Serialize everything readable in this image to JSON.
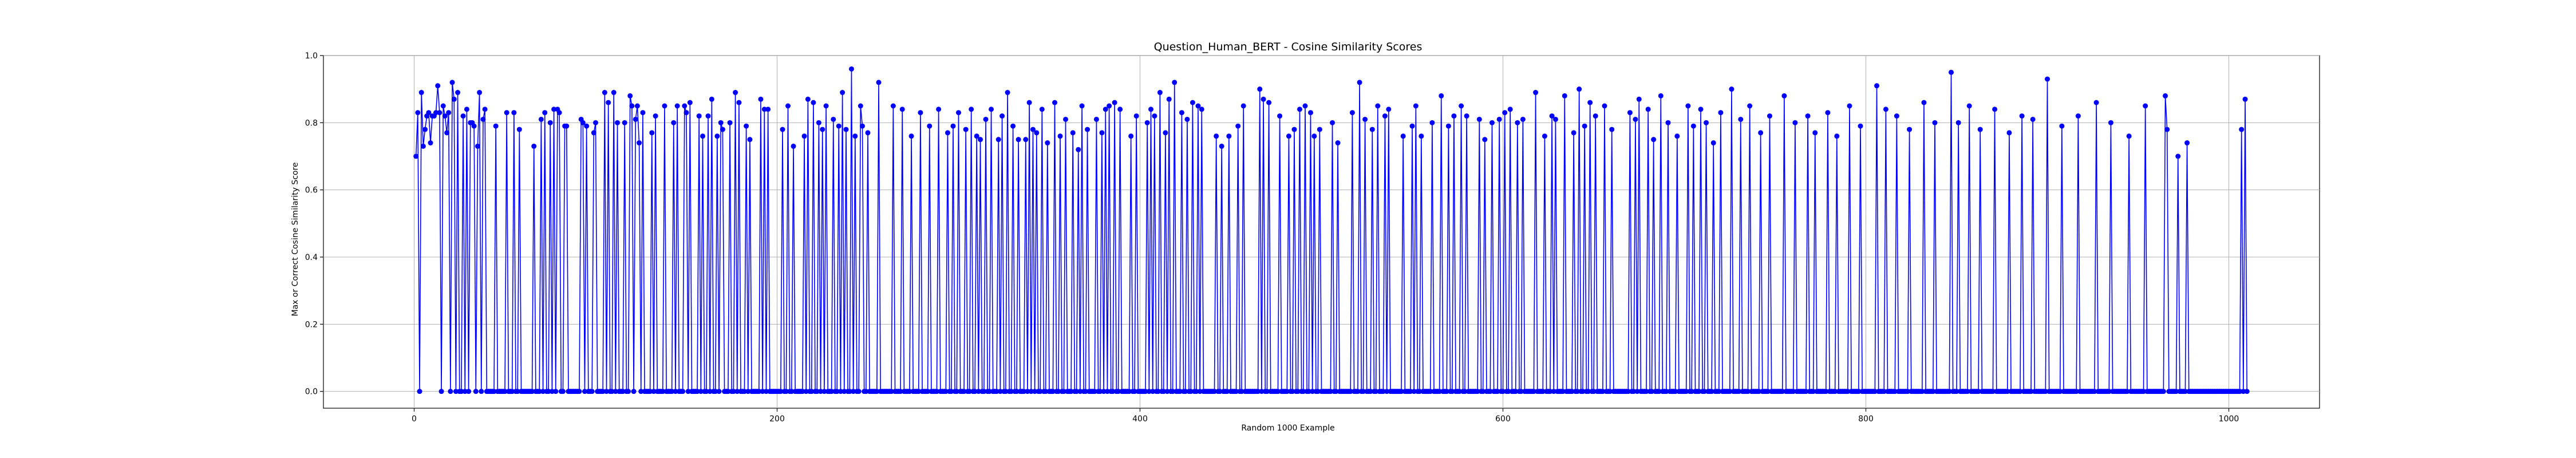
{
  "chart_data": {
    "type": "line",
    "title": "Question_Human_BERT - Cosine Similarity Scores",
    "xlabel": "Random 1000 Example",
    "ylabel": "Max or Correct Cosine Similarity Score",
    "xlim": [
      -50,
      1050
    ],
    "ylim": [
      -0.05,
      1.0
    ],
    "x_ticks": [
      0,
      200,
      400,
      600,
      800,
      1000
    ],
    "y_ticks": [
      0.0,
      0.2,
      0.4,
      0.6,
      0.8,
      1.0
    ],
    "x_tick_labels": [
      "0",
      "200",
      "400",
      "600",
      "800",
      "1000"
    ],
    "y_tick_labels": [
      "0.0",
      "0.2",
      "0.4",
      "0.6",
      "0.8",
      "1.0"
    ],
    "grid": true,
    "series_color": "#0000ff",
    "marker": "circle",
    "x_start": 1,
    "series": [
      {
        "values": [
          0.7,
          0.83,
          0.0,
          0.89,
          0.73,
          0.78,
          0.82,
          0.83,
          0.74,
          0.82,
          0.82,
          0.83,
          0.91,
          0.83,
          0.0,
          0.85,
          0.82,
          0.77,
          0.83,
          0.0,
          0.92,
          0.87,
          0.0,
          0.89,
          0.0,
          0.0,
          0.82,
          0.0,
          0.84,
          0.0,
          0.8,
          0.8,
          0.79,
          0.0,
          0.73,
          0.89,
          0.0,
          0.81,
          0.84,
          0.0,
          0.0,
          0.0,
          0.0,
          0.0,
          0.79,
          0.0,
          0.0,
          0.0,
          0.0,
          0.0,
          0.83,
          0.0,
          0.0,
          0.0,
          0.83,
          0.0,
          0.0,
          0.78,
          0.0,
          0.0,
          0.0,
          0.0,
          0.0,
          0.0,
          0.0,
          0.73,
          0.0,
          0.0,
          0.0,
          0.81,
          0.0,
          0.83,
          0.0,
          0.0,
          0.8,
          0.0,
          0.84,
          0.0,
          0.84,
          0.83,
          0.0,
          0.0,
          0.79,
          0.79,
          0.0,
          0.0,
          0.0,
          0.0,
          0.0,
          0.0,
          0.0,
          0.81,
          0.8,
          0.0,
          0.79,
          0.0,
          0.0,
          0.0,
          0.77,
          0.8,
          0.0,
          0.0,
          0.0,
          0.0,
          0.89,
          0.0,
          0.86,
          0.0,
          0.0,
          0.89,
          0.0,
          0.8,
          0.0,
          0.0,
          0.0,
          0.8,
          0.0,
          0.0,
          0.88,
          0.85,
          0.0,
          0.81,
          0.85,
          0.74,
          0.0,
          0.83,
          0.0,
          0.0,
          0.0,
          0.0,
          0.77,
          0.0,
          0.82,
          0.0,
          0.0,
          0.0,
          0.0,
          0.85,
          0.0,
          0.0,
          0.0,
          0.0,
          0.8,
          0.0,
          0.85,
          0.0,
          0.0,
          0.0,
          0.85,
          0.83,
          0.0,
          0.86,
          0.0,
          0.0,
          0.0,
          0.0,
          0.82,
          0.0,
          0.76,
          0.0,
          0.0,
          0.82,
          0.0,
          0.87,
          0.0,
          0.0,
          0.76,
          0.0,
          0.8,
          0.78,
          0.0,
          0.0,
          0.0,
          0.8,
          0.0,
          0.0,
          0.89,
          0.0,
          0.86,
          0.0,
          0.0,
          0.0,
          0.79,
          0.0,
          0.75,
          0.0,
          0.0,
          0.0,
          0.0,
          0.0,
          0.87,
          0.0,
          0.84,
          0.0,
          0.84,
          0.0,
          0.0,
          0.0,
          0.0,
          0.0,
          0.0,
          0.0,
          0.78,
          0.0,
          0.0,
          0.85,
          0.0,
          0.0,
          0.73,
          0.0,
          0.0,
          0.0,
          0.0,
          0.0,
          0.76,
          0.0,
          0.87,
          0.0,
          0.0,
          0.86,
          0.0,
          0.0,
          0.8,
          0.0,
          0.78,
          0.0,
          0.85,
          0.0,
          0.0,
          0.0,
          0.81,
          0.0,
          0.0,
          0.79,
          0.0,
          0.89,
          0.0,
          0.78,
          0.0,
          0.0,
          0.96,
          0.0,
          0.76,
          0.0,
          0.0,
          0.85,
          0.79,
          0.0,
          0.0,
          0.77,
          0.0,
          0.0,
          0.0,
          0.0,
          0.0,
          0.92,
          0.0,
          0.0,
          0.0,
          0.0,
          0.0,
          0.0,
          0.0,
          0.85,
          0.0,
          0.0,
          0.0,
          0.0,
          0.84,
          0.0,
          0.0,
          0.0,
          0.0,
          0.76,
          0.0,
          0.0,
          0.0,
          0.0,
          0.83,
          0.0,
          0.0,
          0.0,
          0.0,
          0.79,
          0.0,
          0.0,
          0.0,
          0.0,
          0.84,
          0.0,
          0.0,
          0.0,
          0.0,
          0.77,
          0.0,
          0.0,
          0.79,
          0.0,
          0.0,
          0.83,
          0.0,
          0.0,
          0.0,
          0.78,
          0.0,
          0.0,
          0.84,
          0.0,
          0.0,
          0.76,
          0.0,
          0.75,
          0.0,
          0.0,
          0.81,
          0.0,
          0.0,
          0.84,
          0.0,
          0.0,
          0.0,
          0.75,
          0.0,
          0.82,
          0.0,
          0.0,
          0.89,
          0.0,
          0.0,
          0.79,
          0.0,
          0.0,
          0.75,
          0.0,
          0.0,
          0.0,
          0.75,
          0.0,
          0.86,
          0.0,
          0.78,
          0.0,
          0.77,
          0.0,
          0.0,
          0.84,
          0.0,
          0.0,
          0.74,
          0.0,
          0.0,
          0.0,
          0.86,
          0.0,
          0.0,
          0.76,
          0.0,
          0.0,
          0.81,
          0.0,
          0.0,
          0.0,
          0.77,
          0.0,
          0.0,
          0.72,
          0.0,
          0.85,
          0.0,
          0.0,
          0.78,
          0.0,
          0.0,
          0.0,
          0.0,
          0.81,
          0.0,
          0.0,
          0.77,
          0.0,
          0.84,
          0.0,
          0.85,
          0.0,
          0.0,
          0.86,
          0.0,
          0.0,
          0.84,
          0.0,
          0.0,
          0.0,
          0.0,
          0.0,
          0.76,
          0.0,
          0.0,
          0.82,
          0.0,
          0.0,
          0.0,
          0.0,
          0.0,
          0.8,
          0.0,
          0.84,
          0.0,
          0.82,
          0.0,
          0.0,
          0.89,
          0.0,
          0.0,
          0.77,
          0.0,
          0.87,
          0.0,
          0.0,
          0.92,
          0.0,
          0.0,
          0.0,
          0.83,
          0.0,
          0.0,
          0.81,
          0.0,
          0.0,
          0.86,
          0.0,
          0.0,
          0.85,
          0.0,
          0.84,
          0.0,
          0.0,
          0.0,
          0.0,
          0.0,
          0.0,
          0.0,
          0.76,
          0.0,
          0.0,
          0.73,
          0.0,
          0.0,
          0.0,
          0.76,
          0.0,
          0.0,
          0.0,
          0.0,
          0.79,
          0.0,
          0.0,
          0.85,
          0.0,
          0.0,
          0.0,
          0.0,
          0.0,
          0.0,
          0.0,
          0.0,
          0.9,
          0.0,
          0.87,
          0.0,
          0.0,
          0.86,
          0.0,
          0.0,
          0.0,
          0.0,
          0.0,
          0.82,
          0.0,
          0.0,
          0.0,
          0.0,
          0.76,
          0.0,
          0.0,
          0.78,
          0.0,
          0.0,
          0.84,
          0.0,
          0.0,
          0.85,
          0.0,
          0.0,
          0.83,
          0.0,
          0.76,
          0.0,
          0.0,
          0.78,
          0.0,
          0.0,
          0.0,
          0.0,
          0.0,
          0.0,
          0.8,
          0.0,
          0.0,
          0.74,
          0.0,
          0.0,
          0.0,
          0.0,
          0.0,
          0.0,
          0.0,
          0.83,
          0.0,
          0.0,
          0.0,
          0.92,
          0.0,
          0.0,
          0.81,
          0.0,
          0.0,
          0.0,
          0.78,
          0.0,
          0.0,
          0.85,
          0.0,
          0.0,
          0.0,
          0.82,
          0.0,
          0.84,
          0.0,
          0.0,
          0.0,
          0.0,
          0.0,
          0.0,
          0.0,
          0.76,
          0.0,
          0.0,
          0.0,
          0.0,
          0.79,
          0.0,
          0.85,
          0.0,
          0.0,
          0.76,
          0.0,
          0.0,
          0.0,
          0.0,
          0.0,
          0.8,
          0.0,
          0.0,
          0.0,
          0.0,
          0.88,
          0.0,
          0.0,
          0.0,
          0.79,
          0.0,
          0.0,
          0.82,
          0.0,
          0.0,
          0.0,
          0.85,
          0.0,
          0.0,
          0.82,
          0.0,
          0.0,
          0.0,
          0.0,
          0.0,
          0.0,
          0.81,
          0.0,
          0.0,
          0.75,
          0.0,
          0.0,
          0.0,
          0.8,
          0.0,
          0.0,
          0.0,
          0.81,
          0.0,
          0.0,
          0.83,
          0.0,
          0.0,
          0.84,
          0.0,
          0.0,
          0.0,
          0.8,
          0.0,
          0.0,
          0.81,
          0.0,
          0.0,
          0.0,
          0.0,
          0.0,
          0.0,
          0.89,
          0.0,
          0.0,
          0.0,
          0.0,
          0.76,
          0.0,
          0.0,
          0.0,
          0.82,
          0.0,
          0.81,
          0.0,
          0.0,
          0.0,
          0.0,
          0.88,
          0.0,
          0.0,
          0.0,
          0.0,
          0.77,
          0.0,
          0.0,
          0.9,
          0.0,
          0.0,
          0.79,
          0.0,
          0.0,
          0.86,
          0.0,
          0.0,
          0.82,
          0.0,
          0.0,
          0.0,
          0.0,
          0.85,
          0.0,
          0.0,
          0.0,
          0.78,
          0.0,
          0.0,
          0.0,
          0.0,
          0.0,
          0.0,
          0.0,
          0.0,
          0.0,
          0.83,
          0.0,
          0.0,
          0.81,
          0.0,
          0.87,
          0.0,
          0.0,
          0.0,
          0.0,
          0.84,
          0.0,
          0.0,
          0.75,
          0.0,
          0.0,
          0.0,
          0.88,
          0.0,
          0.0,
          0.0,
          0.8,
          0.0,
          0.0,
          0.0,
          0.0,
          0.76,
          0.0,
          0.0,
          0.0,
          0.0,
          0.0,
          0.85,
          0.0,
          0.0,
          0.79,
          0.0,
          0.0,
          0.0,
          0.84,
          0.0,
          0.0,
          0.8,
          0.0,
          0.0,
          0.0,
          0.74,
          0.0,
          0.0,
          0.0,
          0.83,
          0.0,
          0.0,
          0.0,
          0.0,
          0.0,
          0.9,
          0.0,
          0.0,
          0.0,
          0.0,
          0.81,
          0.0,
          0.0,
          0.0,
          0.0,
          0.85,
          0.0,
          0.0,
          0.0,
          0.0,
          0.0,
          0.77,
          0.0,
          0.0,
          0.0,
          0.0,
          0.82,
          0.0,
          0.0,
          0.0,
          0.0,
          0.0,
          0.0,
          0.0,
          0.88,
          0.0,
          0.0,
          0.0,
          0.0,
          0.0,
          0.8,
          0.0,
          0.0,
          0.0,
          0.0,
          0.0,
          0.0,
          0.82,
          0.0,
          0.0,
          0.0,
          0.77,
          0.0,
          0.0,
          0.0,
          0.0,
          0.0,
          0.0,
          0.83,
          0.0,
          0.0,
          0.0,
          0.0,
          0.76,
          0.0,
          0.0,
          0.0,
          0.0,
          0.0,
          0.0,
          0.85,
          0.0,
          0.0,
          0.0,
          0.0,
          0.0,
          0.79,
          0.0,
          0.0,
          0.0,
          0.0,
          0.0,
          0.0,
          0.0,
          0.0,
          0.91,
          0.0,
          0.0,
          0.0,
          0.0,
          0.84,
          0.0,
          0.0,
          0.0,
          0.0,
          0.0,
          0.82,
          0.0,
          0.0,
          0.0,
          0.0,
          0.0,
          0.0,
          0.78,
          0.0,
          0.0,
          0.0,
          0.0,
          0.0,
          0.0,
          0.0,
          0.86,
          0.0,
          0.0,
          0.0,
          0.0,
          0.0,
          0.8,
          0.0,
          0.0,
          0.0,
          0.0,
          0.0,
          0.0,
          0.0,
          0.0,
          0.95,
          0.0,
          0.0,
          0.0,
          0.8,
          0.0,
          0.0,
          0.0,
          0.0,
          0.0,
          0.85,
          0.0,
          0.0,
          0.0,
          0.0,
          0.0,
          0.78,
          0.0,
          0.0,
          0.0,
          0.0,
          0.0,
          0.0,
          0.0,
          0.84,
          0.0,
          0.0,
          0.0,
          0.0,
          0.0,
          0.0,
          0.0,
          0.77,
          0.0,
          0.0,
          0.0,
          0.0,
          0.0,
          0.0,
          0.82,
          0.0,
          0.0,
          0.0,
          0.0,
          0.0,
          0.81,
          0.0,
          0.0,
          0.0,
          0.0,
          0.0,
          0.0,
          0.0,
          0.93,
          0.0,
          0.0,
          0.0,
          0.0,
          0.0,
          0.0,
          0.0,
          0.79,
          0.0,
          0.0,
          0.0,
          0.0,
          0.0,
          0.0,
          0.0,
          0.0,
          0.82,
          0.0,
          0.0,
          0.0,
          0.0,
          0.0,
          0.0,
          0.0,
          0.0,
          0.0,
          0.86,
          0.0,
          0.0,
          0.0,
          0.0,
          0.0,
          0.0,
          0.0,
          0.8,
          0.0,
          0.0,
          0.0,
          0.0,
          0.0,
          0.0,
          0.0,
          0.0,
          0.0,
          0.76,
          0.0,
          0.0,
          0.0,
          0.0,
          0.0,
          0.0,
          0.0,
          0.0,
          0.85,
          0.0,
          0.0,
          0.0,
          0.0,
          0.0,
          0.0,
          0.0,
          0.0,
          0.0,
          0.0,
          0.88,
          0.78,
          0.0,
          0.0,
          0.0,
          0.0,
          0.0,
          0.7,
          0.0,
          0.0,
          0.0,
          0.0,
          0.74,
          0.0,
          0.0,
          0.0,
          0.0,
          0.0,
          0.0,
          0.0,
          0.0,
          0.0,
          0.0,
          0.0,
          0.0,
          0.0,
          0.0,
          0.0,
          0.0,
          0.0,
          0.0,
          0.0,
          0.0,
          0.0,
          0.0,
          0.0,
          0.0,
          0.0,
          0.0,
          0.0,
          0.0,
          0.0,
          0.78,
          0.0,
          0.87,
          0.0
        ]
      }
    ]
  }
}
